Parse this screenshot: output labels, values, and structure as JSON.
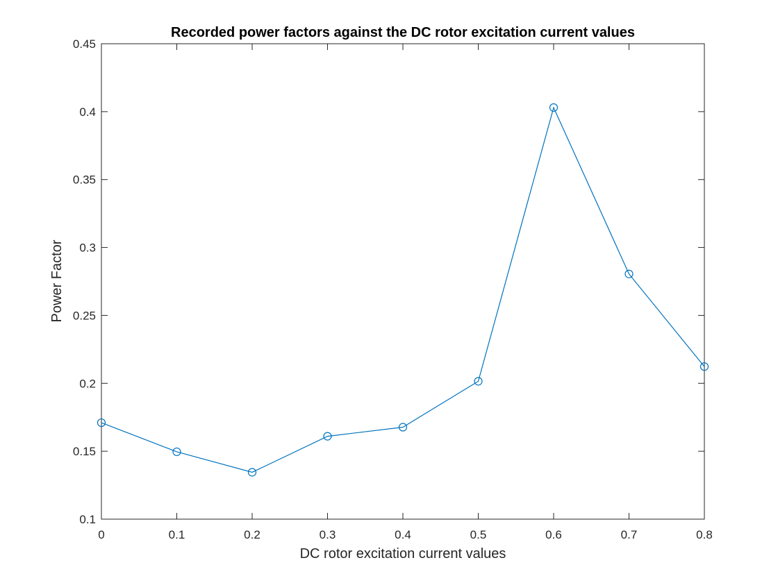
{
  "chart_data": {
    "type": "line",
    "title": "Recorded power factors against the DC rotor excitation current values",
    "xlabel": "DC rotor excitation current values",
    "ylabel": "Power Factor",
    "xlim": [
      0,
      0.8
    ],
    "ylim": [
      0.1,
      0.45
    ],
    "xticks": [
      "0",
      "0.1",
      "0.2",
      "0.3",
      "0.4",
      "0.5",
      "0.6",
      "0.7",
      "0.8"
    ],
    "yticks": [
      "0.1",
      "0.15",
      "0.2",
      "0.25",
      "0.3",
      "0.35",
      "0.4",
      "0.45"
    ],
    "grid": false,
    "marker": "circle",
    "series_color": "#0072BD",
    "x": [
      0,
      0.1,
      0.2,
      0.3,
      0.4,
      0.5,
      0.6,
      0.7,
      0.8
    ],
    "y": [
      0.171,
      0.1496,
      0.1345,
      0.161,
      0.1677,
      0.2015,
      0.403,
      0.2805,
      0.2123
    ]
  }
}
